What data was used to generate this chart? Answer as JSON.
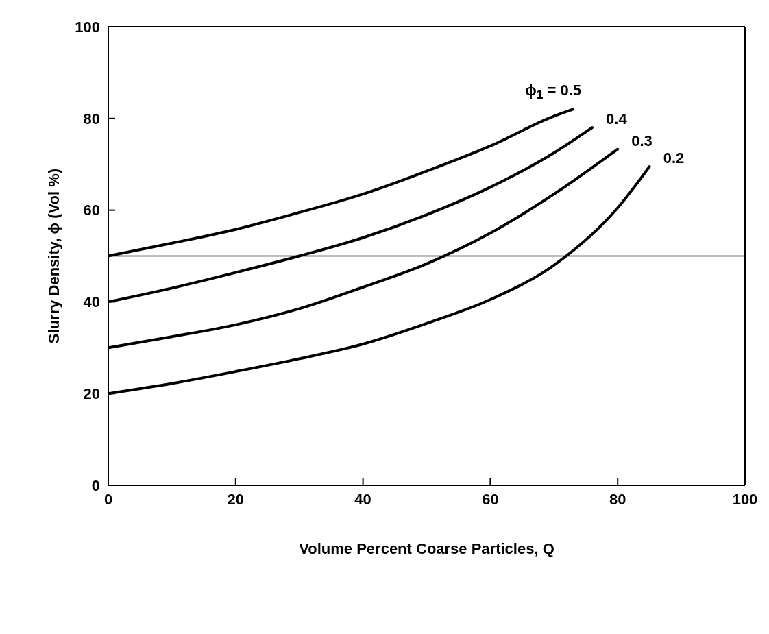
{
  "chart_data": {
    "type": "line",
    "xlabel": "Volume Percent Coarse Particles, Q",
    "ylabel": "Slurry Density, ϕ (Vol %)",
    "xlim": [
      0,
      100
    ],
    "xticks": [
      0,
      20,
      40,
      60,
      80,
      100
    ],
    "ylim": [
      0,
      100
    ],
    "yticks": [
      0,
      20,
      40,
      60,
      80,
      100
    ],
    "grid": false,
    "legend": false,
    "marker": "none",
    "line_style": "solid",
    "ref_lines": [
      {
        "axis": "y",
        "value": 50,
        "color": "#000000"
      }
    ],
    "series": [
      {
        "name": "ϕ$_{1}$ = 0.5",
        "color": "#000000",
        "x": [
          0,
          10,
          20,
          30,
          40,
          50,
          60,
          70,
          73
        ],
        "values": [
          50,
          52.8,
          55.8,
          59.5,
          63.5,
          68.5,
          74,
          80.5,
          82
        ]
      },
      {
        "name": "0.4",
        "color": "#000000",
        "x": [
          0,
          10,
          20,
          30,
          40,
          50,
          60,
          70,
          76
        ],
        "values": [
          40,
          43,
          46.4,
          50,
          54,
          59,
          65,
          72.5,
          78
        ]
      },
      {
        "name": "0.3",
        "color": "#000000",
        "x": [
          0,
          10,
          20,
          30,
          40,
          50,
          60,
          70,
          80
        ],
        "values": [
          30,
          32.4,
          35,
          38.5,
          43.2,
          48.3,
          55,
          63.5,
          73.3
        ]
      },
      {
        "name": "0.2",
        "color": "#000000",
        "x": [
          0,
          10,
          20,
          30,
          40,
          50,
          60,
          70,
          80,
          85
        ],
        "values": [
          20,
          22.2,
          24.8,
          27.6,
          30.8,
          35.3,
          40.5,
          48,
          60.5,
          69.5
        ]
      }
    ]
  }
}
